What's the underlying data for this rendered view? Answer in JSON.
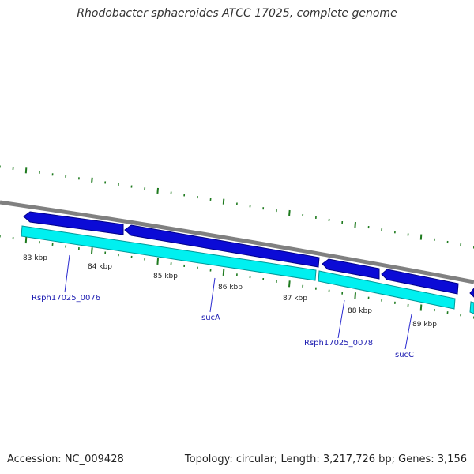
{
  "title": "Rhodobacter sphaeroides ATCC 17025, complete genome",
  "footer": {
    "accession": "Accession: NC_009428",
    "summary": "Topology: circular; Length: 3,217,726 bp; Genes: 3,156"
  },
  "colors": {
    "backbone": "#808080",
    "cds_arrow": "#0b0bd6",
    "cds_arrow_edge": "#000088",
    "cds_bar": "#00f0f0",
    "cds_bar_edge": "#009999",
    "tick": "#1e7a1e",
    "label_line": "#2a2ad0",
    "label_text": "#1a1ab0"
  },
  "ticks": [
    "83 kbp",
    "84 kbp",
    "85 kbp",
    "86 kbp",
    "87 kbp",
    "88 kbp",
    "89 kbp"
  ],
  "gene_labels": [
    "Rsph17025_0076",
    "sucA",
    "Rsph17025_0078",
    "sucC"
  ]
}
